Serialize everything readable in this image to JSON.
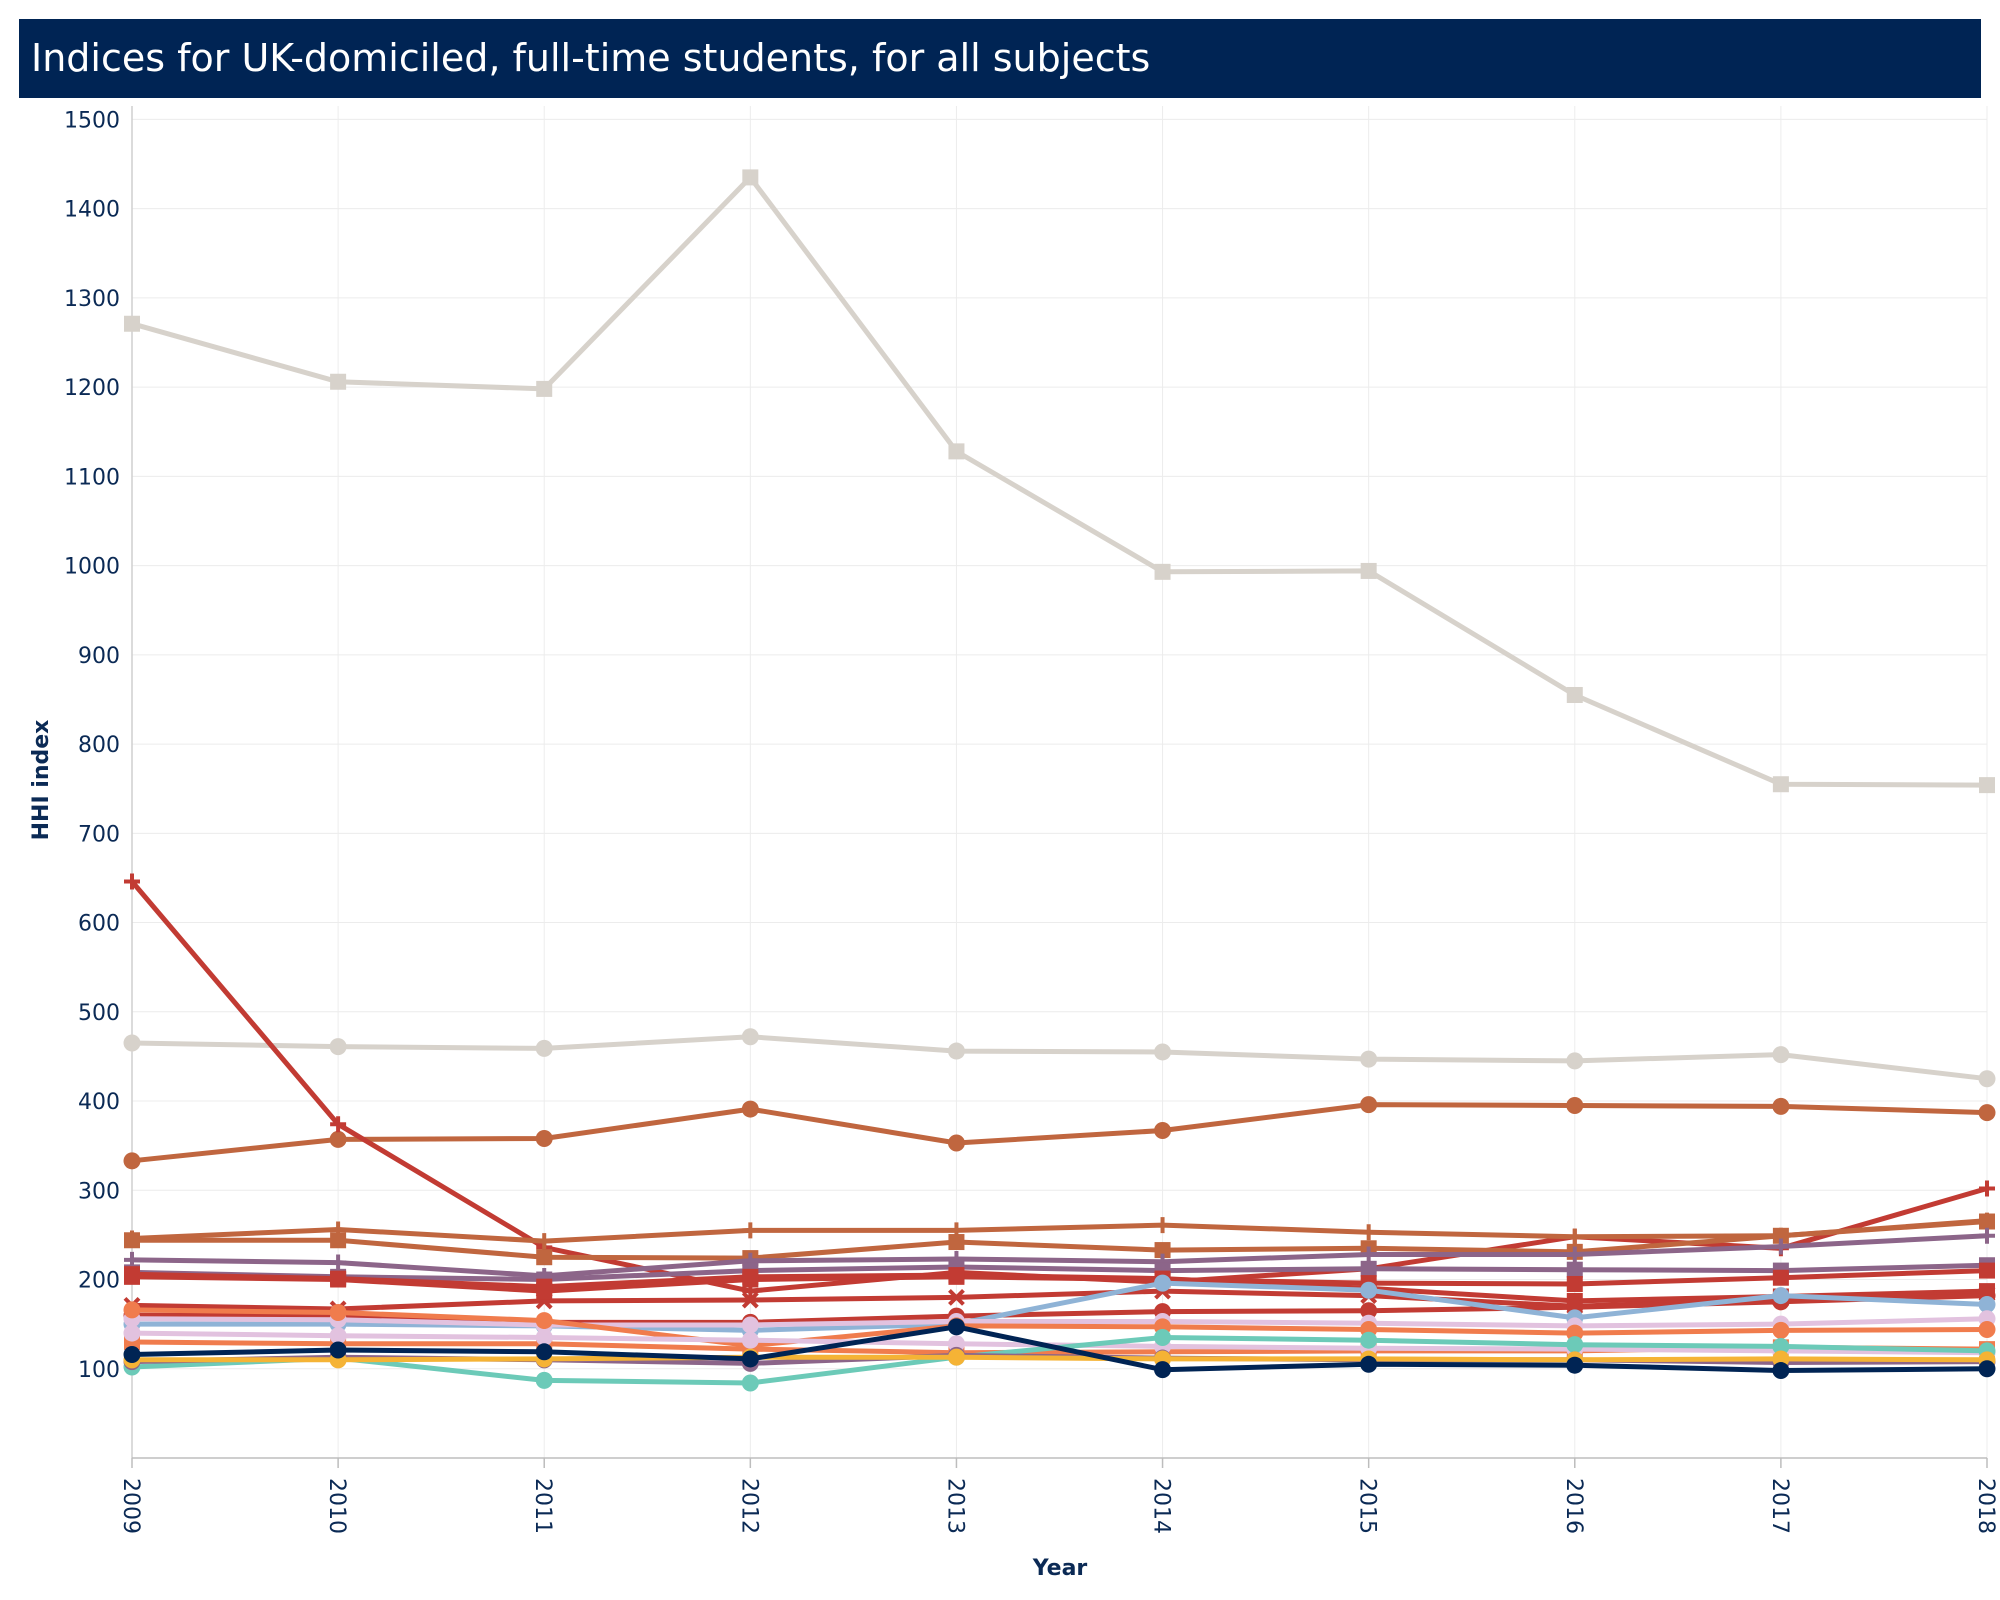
{
  "header": {
    "title": "Indices for UK-domiciled, full-time students, for all subjects"
  },
  "chart_data": {
    "type": "line",
    "title": "Indices for UK-domiciled, full-time students, for all subjects",
    "xlabel": "Year",
    "ylabel": "HHI index",
    "x": [
      2009,
      2010,
      2011,
      2012,
      2013,
      2014,
      2015,
      2016,
      2017,
      2018
    ],
    "x_tick_labels": [
      "2009",
      "2010",
      "2011",
      "2012",
      "2013",
      "2014",
      "2015",
      "2016",
      "2017",
      "2018"
    ],
    "y_ticks": [
      100,
      200,
      300,
      400,
      500,
      600,
      700,
      800,
      900,
      1000,
      1100,
      1200,
      1300,
      1400,
      1500
    ],
    "y_tick_labels": [
      "100",
      "200",
      "300",
      "400",
      "500",
      "600",
      "700",
      "800",
      "900",
      "1000",
      "1100",
      "1200",
      "1300",
      "1400",
      "1500"
    ],
    "xlim": [
      2009,
      2018
    ],
    "ylim": [
      0,
      1515
    ],
    "grid": true,
    "legend": "none",
    "series": [
      {
        "color": "#d7d2cb",
        "marker": "square",
        "values": [
          1271,
          1206,
          1198,
          1435,
          1128,
          993,
          994,
          855,
          755,
          754
        ]
      },
      {
        "color": "#d7d2cb",
        "marker": "circle",
        "values": [
          465,
          461,
          459,
          472,
          456,
          455,
          447,
          445,
          452,
          425
        ]
      },
      {
        "color": "#c0663f",
        "marker": "circle",
        "values": [
          333,
          357,
          358,
          391,
          353,
          367,
          396,
          395,
          394,
          387
        ]
      },
      {
        "color": "#c23b33",
        "marker": "plus",
        "values": [
          646,
          374,
          236,
          187,
          208,
          197,
          212,
          248,
          235,
          302
        ]
      },
      {
        "color": "#c0663f",
        "marker": "plus",
        "values": [
          246,
          256,
          243,
          255,
          255,
          261,
          253,
          248,
          249,
          266
        ]
      },
      {
        "color": "#c0663f",
        "marker": "square",
        "values": [
          244,
          244,
          225,
          224,
          242,
          233,
          235,
          231,
          249,
          265
        ]
      },
      {
        "color": "#8c6589",
        "marker": "plus",
        "values": [
          222,
          219,
          204,
          221,
          223,
          220,
          228,
          228,
          237,
          249
        ]
      },
      {
        "color": "#8c6589",
        "marker": "square",
        "values": [
          208,
          203,
          200,
          210,
          214,
          210,
          212,
          211,
          210,
          216
        ]
      },
      {
        "color": "#c23b33",
        "marker": "square",
        "values": [
          206,
          201,
          192,
          203,
          205,
          201,
          190,
          176,
          181,
          187
        ]
      },
      {
        "color": "#c23b33",
        "marker": "cross",
        "values": [
          171,
          167,
          176,
          177,
          180,
          187,
          182,
          170,
          178,
          184
        ]
      },
      {
        "color": "#c23b33",
        "marker": "circle",
        "values": [
          160,
          160,
          152,
          152,
          159,
          164,
          165,
          169,
          175,
          182
        ]
      },
      {
        "color": "#c23b33",
        "marker": "square",
        "values": [
          203,
          200,
          187,
          200,
          203,
          200,
          196,
          195,
          202,
          210
        ]
      },
      {
        "color": "#8fb3d6",
        "marker": "circle",
        "values": [
          150,
          150,
          148,
          143,
          150,
          196,
          188,
          157,
          182,
          172
        ]
      },
      {
        "color": "#e2c2df",
        "marker": "circle",
        "values": [
          156,
          155,
          149,
          149,
          153,
          153,
          151,
          148,
          150,
          156
        ]
      },
      {
        "color": "#f07c4d",
        "marker": "circle",
        "values": [
          166,
          163,
          154,
          126,
          148,
          147,
          144,
          140,
          143,
          144
        ]
      },
      {
        "color": "#f07c4d",
        "marker": "square",
        "values": [
          130,
          128,
          128,
          122,
          118,
          119,
          120,
          120,
          124,
          122
        ]
      },
      {
        "color": "#e2c2df",
        "marker": "circle",
        "values": [
          140,
          137,
          135,
          132,
          128,
          125,
          123,
          122,
          120,
          118
        ]
      },
      {
        "color": "#6ccab8",
        "marker": "circle",
        "values": [
          102,
          112,
          87,
          84,
          113,
          135,
          132,
          127,
          125,
          120
        ]
      },
      {
        "color": "#8c6589",
        "marker": "circle",
        "values": [
          108,
          113,
          110,
          106,
          115,
          112,
          110,
          110,
          107,
          108
        ]
      },
      {
        "color": "#f5b335",
        "marker": "circle",
        "values": [
          110,
          110,
          111,
          113,
          113,
          111,
          111,
          110,
          111,
          110
        ]
      },
      {
        "color": "#002454",
        "marker": "circle",
        "values": [
          116,
          121,
          119,
          111,
          147,
          99,
          105,
          104,
          98,
          100
        ]
      }
    ]
  }
}
